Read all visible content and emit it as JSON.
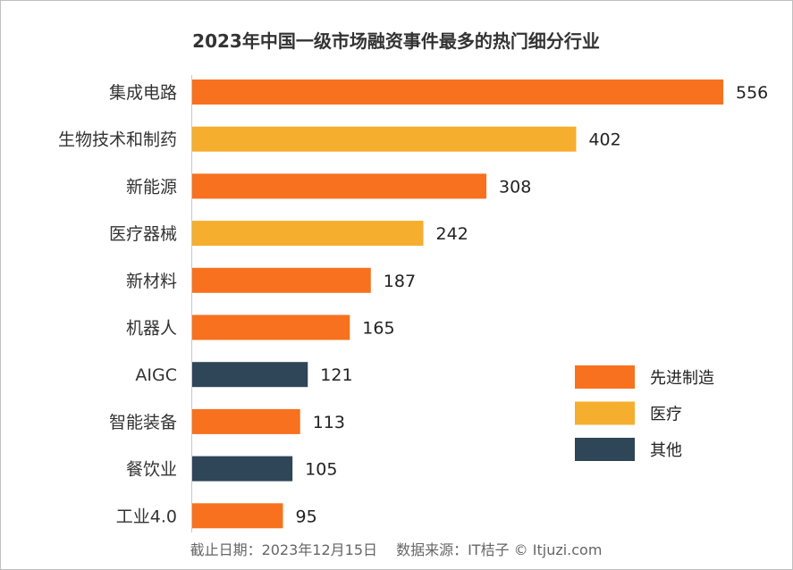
{
  "chart_data": {
    "type": "bar",
    "orientation": "horizontal",
    "title": "2023年中国一级市场融资事件最多的热门细分行业",
    "categories": [
      "集成电路",
      "生物技术和制药",
      "新能源",
      "医疗器械",
      "新材料",
      "机器人",
      "AIGC",
      "智能装备",
      "餐饮业",
      "工业4.0"
    ],
    "values": [
      556,
      402,
      308,
      242,
      187,
      165,
      121,
      113,
      105,
      95
    ],
    "groups": [
      "先进制造",
      "医疗",
      "先进制造",
      "医疗",
      "先进制造",
      "先进制造",
      "其他",
      "先进制造",
      "其他",
      "先进制造"
    ],
    "legend": [
      {
        "name": "先进制造",
        "color": "#F7711E"
      },
      {
        "name": "医疗",
        "color": "#F5AE2E"
      },
      {
        "name": "其他",
        "color": "#2F4558"
      }
    ],
    "legend_position": "right",
    "xlim": [
      0,
      556
    ],
    "grid": false,
    "data_labels": true
  },
  "footer": "截止日期：2023年12月15日　 数据来源：IT桔子 © Itjuzi.com"
}
